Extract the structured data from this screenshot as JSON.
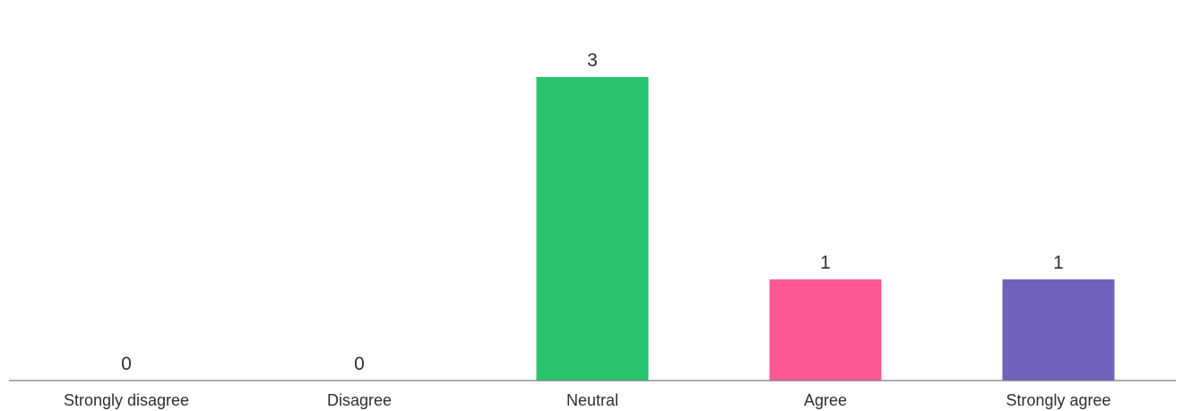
{
  "chart_data": {
    "type": "bar",
    "categories": [
      "Strongly disagree",
      "Disagree",
      "Neutral",
      "Agree",
      "Strongly agree"
    ],
    "values": [
      0,
      0,
      3,
      1,
      1
    ],
    "colors": [
      "#27c46d",
      "#27c46d",
      "#27c46d",
      "#fc5894",
      "#7061ba"
    ],
    "ylim": [
      0,
      3
    ],
    "grid": false,
    "legend": "none",
    "data_labels": true
  }
}
